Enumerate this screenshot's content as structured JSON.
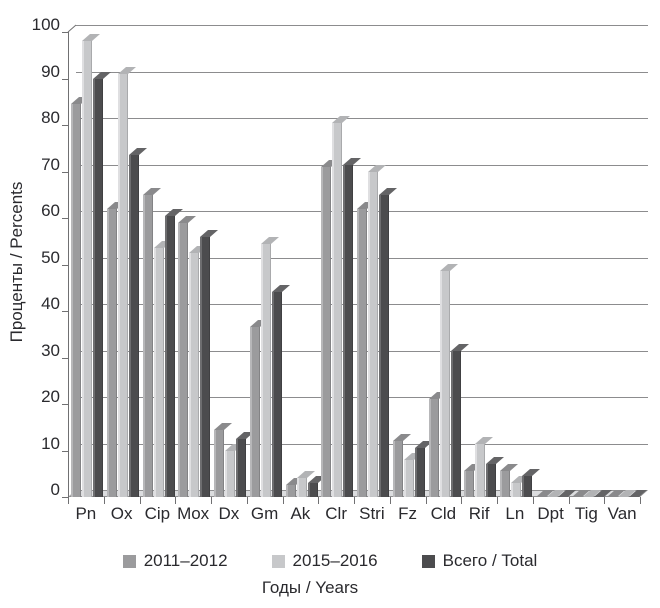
{
  "chart_data": {
    "type": "bar",
    "title": "",
    "categories": [
      "Pn",
      "Ox",
      "Cip",
      "Mox",
      "Dx",
      "Gm",
      "Ak",
      "Clr",
      "Stri",
      "Fz",
      "Cld",
      "Rif",
      "Ln",
      "Dpt",
      "Tig",
      "Van"
    ],
    "series": [
      {
        "name": "2011–2012",
        "color": "#9b9b9d",
        "top_color": "#8a8a8c",
        "edge_color": "#b7b7b9",
        "values": [
          84.5,
          62,
          65,
          59,
          14.5,
          36.5,
          2.5,
          71,
          62,
          12,
          21,
          5.5,
          5.5,
          0,
          0,
          0
        ]
      },
      {
        "name": "2015–2016",
        "color": "#c7c8ca",
        "top_color": "#b2b3b5",
        "edge_color": "#dfdfe1",
        "values": [
          98,
          91,
          53.5,
          52.5,
          10,
          54.5,
          4,
          80.5,
          70,
          8,
          48.5,
          11.5,
          3,
          0,
          0,
          0
        ]
      },
      {
        "name": "Всего / Total",
        "color": "#4c4c4e",
        "top_color": "#646466",
        "edge_color": "#6e6e70",
        "values": [
          90,
          73.5,
          60.5,
          56,
          12.5,
          44,
          3,
          71.5,
          65,
          10.5,
          31.5,
          7,
          4.5,
          0,
          0,
          0
        ]
      }
    ],
    "ylabel": "Проценты / Percents",
    "xlabel": "Годы / Years",
    "ylim": [
      0,
      100
    ],
    "yticks": [
      "0",
      "10",
      "20",
      "30",
      "40",
      "50",
      "60",
      "70",
      "80",
      "90",
      "100"
    ],
    "grid": true,
    "legend_position": "bottom"
  },
  "colors": {
    "gridline": "#8c8c8e",
    "axis": "#707072",
    "floor": "#dcdddf",
    "text": "#2a2a2e"
  }
}
